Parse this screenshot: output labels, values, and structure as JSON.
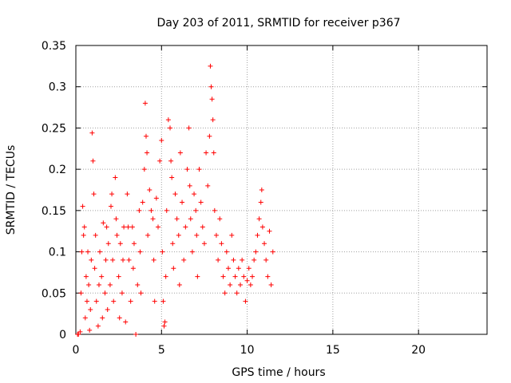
{
  "chart_data": {
    "type": "scatter",
    "title": "Day 203 of 2011, SRMTID for receiver p367",
    "xlabel": "GPS time / hours",
    "ylabel": "SRMTID / TECUs",
    "xlim": [
      0,
      24
    ],
    "ylim": [
      0,
      0.35
    ],
    "xticks": [
      0,
      5,
      10,
      15,
      20
    ],
    "xtick_labels": [
      "0",
      "5",
      "10",
      "15",
      "20"
    ],
    "yticks": [
      0,
      0.05,
      0.1,
      0.15,
      0.2,
      0.25,
      0.3,
      0.35
    ],
    "ytick_labels": [
      "0",
      "0.05",
      "0.1",
      "0.15",
      "0.2",
      "0.25",
      "0.3",
      "0.35"
    ],
    "grid": true,
    "marker": "+",
    "colors": {
      "points": "#ff0000",
      "grid": "#a0a0a0",
      "axes": "#000000"
    },
    "series": [
      {
        "name": "SRMTID",
        "points": [
          [
            0.1,
            0.0
          ],
          [
            0.15,
            0.0
          ],
          [
            0.25,
            0.003
          ],
          [
            0.3,
            0.05
          ],
          [
            0.35,
            0.1
          ],
          [
            0.4,
            0.155
          ],
          [
            0.45,
            0.12
          ],
          [
            0.5,
            0.13
          ],
          [
            0.55,
            0.02
          ],
          [
            0.6,
            0.07
          ],
          [
            0.65,
            0.04
          ],
          [
            0.7,
            0.1
          ],
          [
            0.75,
            0.06
          ],
          [
            0.8,
            0.005
          ],
          [
            0.85,
            0.03
          ],
          [
            0.9,
            0.09
          ],
          [
            0.95,
            0.244
          ],
          [
            1.0,
            0.21
          ],
          [
            1.05,
            0.17
          ],
          [
            1.1,
            0.08
          ],
          [
            1.15,
            0.12
          ],
          [
            1.2,
            0.04
          ],
          [
            1.3,
            0.01
          ],
          [
            1.35,
            0.06
          ],
          [
            1.4,
            0.1
          ],
          [
            1.5,
            0.07
          ],
          [
            1.55,
            0.02
          ],
          [
            1.6,
            0.135
          ],
          [
            1.7,
            0.05
          ],
          [
            1.75,
            0.09
          ],
          [
            1.8,
            0.13
          ],
          [
            1.85,
            0.03
          ],
          [
            1.9,
            0.11
          ],
          [
            2.0,
            0.06
          ],
          [
            2.05,
            0.155
          ],
          [
            2.1,
            0.17
          ],
          [
            2.15,
            0.09
          ],
          [
            2.2,
            0.04
          ],
          [
            2.3,
            0.19
          ],
          [
            2.35,
            0.14
          ],
          [
            2.4,
            0.12
          ],
          [
            2.5,
            0.07
          ],
          [
            2.55,
            0.02
          ],
          [
            2.6,
            0.11
          ],
          [
            2.7,
            0.05
          ],
          [
            2.75,
            0.09
          ],
          [
            2.8,
            0.13
          ],
          [
            2.9,
            0.015
          ],
          [
            3.0,
            0.17
          ],
          [
            3.05,
            0.13
          ],
          [
            3.1,
            0.09
          ],
          [
            3.2,
            0.04
          ],
          [
            3.3,
            0.13
          ],
          [
            3.35,
            0.08
          ],
          [
            3.4,
            0.11
          ],
          [
            3.5,
            0.0
          ],
          [
            3.6,
            0.06
          ],
          [
            3.7,
            0.15
          ],
          [
            3.75,
            0.1
          ],
          [
            3.8,
            0.05
          ],
          [
            3.9,
            0.16
          ],
          [
            4.0,
            0.2
          ],
          [
            4.05,
            0.28
          ],
          [
            4.1,
            0.24
          ],
          [
            4.15,
            0.22
          ],
          [
            4.2,
            0.12
          ],
          [
            4.3,
            0.175
          ],
          [
            4.4,
            0.15
          ],
          [
            4.5,
            0.14
          ],
          [
            4.55,
            0.09
          ],
          [
            4.6,
            0.04
          ],
          [
            4.7,
            0.165
          ],
          [
            4.8,
            0.13
          ],
          [
            4.9,
            0.21
          ],
          [
            5.0,
            0.235
          ],
          [
            5.05,
            0.1
          ],
          [
            5.1,
            0.04
          ],
          [
            5.15,
            0.01
          ],
          [
            5.2,
            0.015
          ],
          [
            5.25,
            0.07
          ],
          [
            5.3,
            0.15
          ],
          [
            5.4,
            0.26
          ],
          [
            5.5,
            0.25
          ],
          [
            5.55,
            0.21
          ],
          [
            5.6,
            0.19
          ],
          [
            5.65,
            0.11
          ],
          [
            5.7,
            0.08
          ],
          [
            5.8,
            0.17
          ],
          [
            5.9,
            0.14
          ],
          [
            6.0,
            0.12
          ],
          [
            6.05,
            0.06
          ],
          [
            6.1,
            0.22
          ],
          [
            6.2,
            0.16
          ],
          [
            6.3,
            0.09
          ],
          [
            6.4,
            0.13
          ],
          [
            6.5,
            0.2
          ],
          [
            6.6,
            0.25
          ],
          [
            6.65,
            0.18
          ],
          [
            6.7,
            0.14
          ],
          [
            6.8,
            0.1
          ],
          [
            6.9,
            0.17
          ],
          [
            7.0,
            0.15
          ],
          [
            7.05,
            0.12
          ],
          [
            7.1,
            0.07
          ],
          [
            7.2,
            0.2
          ],
          [
            7.3,
            0.16
          ],
          [
            7.4,
            0.13
          ],
          [
            7.5,
            0.11
          ],
          [
            7.6,
            0.22
          ],
          [
            7.7,
            0.18
          ],
          [
            7.8,
            0.24
          ],
          [
            7.85,
            0.325
          ],
          [
            7.9,
            0.3
          ],
          [
            7.95,
            0.285
          ],
          [
            8.0,
            0.26
          ],
          [
            8.05,
            0.22
          ],
          [
            8.1,
            0.15
          ],
          [
            8.2,
            0.12
          ],
          [
            8.3,
            0.09
          ],
          [
            8.4,
            0.14
          ],
          [
            8.5,
            0.11
          ],
          [
            8.6,
            0.07
          ],
          [
            8.7,
            0.05
          ],
          [
            8.8,
            0.1
          ],
          [
            8.9,
            0.08
          ],
          [
            9.0,
            0.06
          ],
          [
            9.1,
            0.12
          ],
          [
            9.2,
            0.09
          ],
          [
            9.3,
            0.07
          ],
          [
            9.4,
            0.05
          ],
          [
            9.5,
            0.08
          ],
          [
            9.6,
            0.06
          ],
          [
            9.7,
            0.09
          ],
          [
            9.8,
            0.07
          ],
          [
            9.9,
            0.04
          ],
          [
            10.0,
            0.065
          ],
          [
            10.1,
            0.08
          ],
          [
            10.2,
            0.06
          ],
          [
            10.3,
            0.07
          ],
          [
            10.4,
            0.09
          ],
          [
            10.5,
            0.1
          ],
          [
            10.6,
            0.12
          ],
          [
            10.7,
            0.14
          ],
          [
            10.8,
            0.16
          ],
          [
            10.85,
            0.175
          ],
          [
            10.9,
            0.13
          ],
          [
            11.0,
            0.11
          ],
          [
            11.1,
            0.09
          ],
          [
            11.2,
            0.07
          ],
          [
            11.3,
            0.125
          ],
          [
            11.4,
            0.06
          ],
          [
            11.5,
            0.1
          ]
        ]
      }
    ]
  }
}
